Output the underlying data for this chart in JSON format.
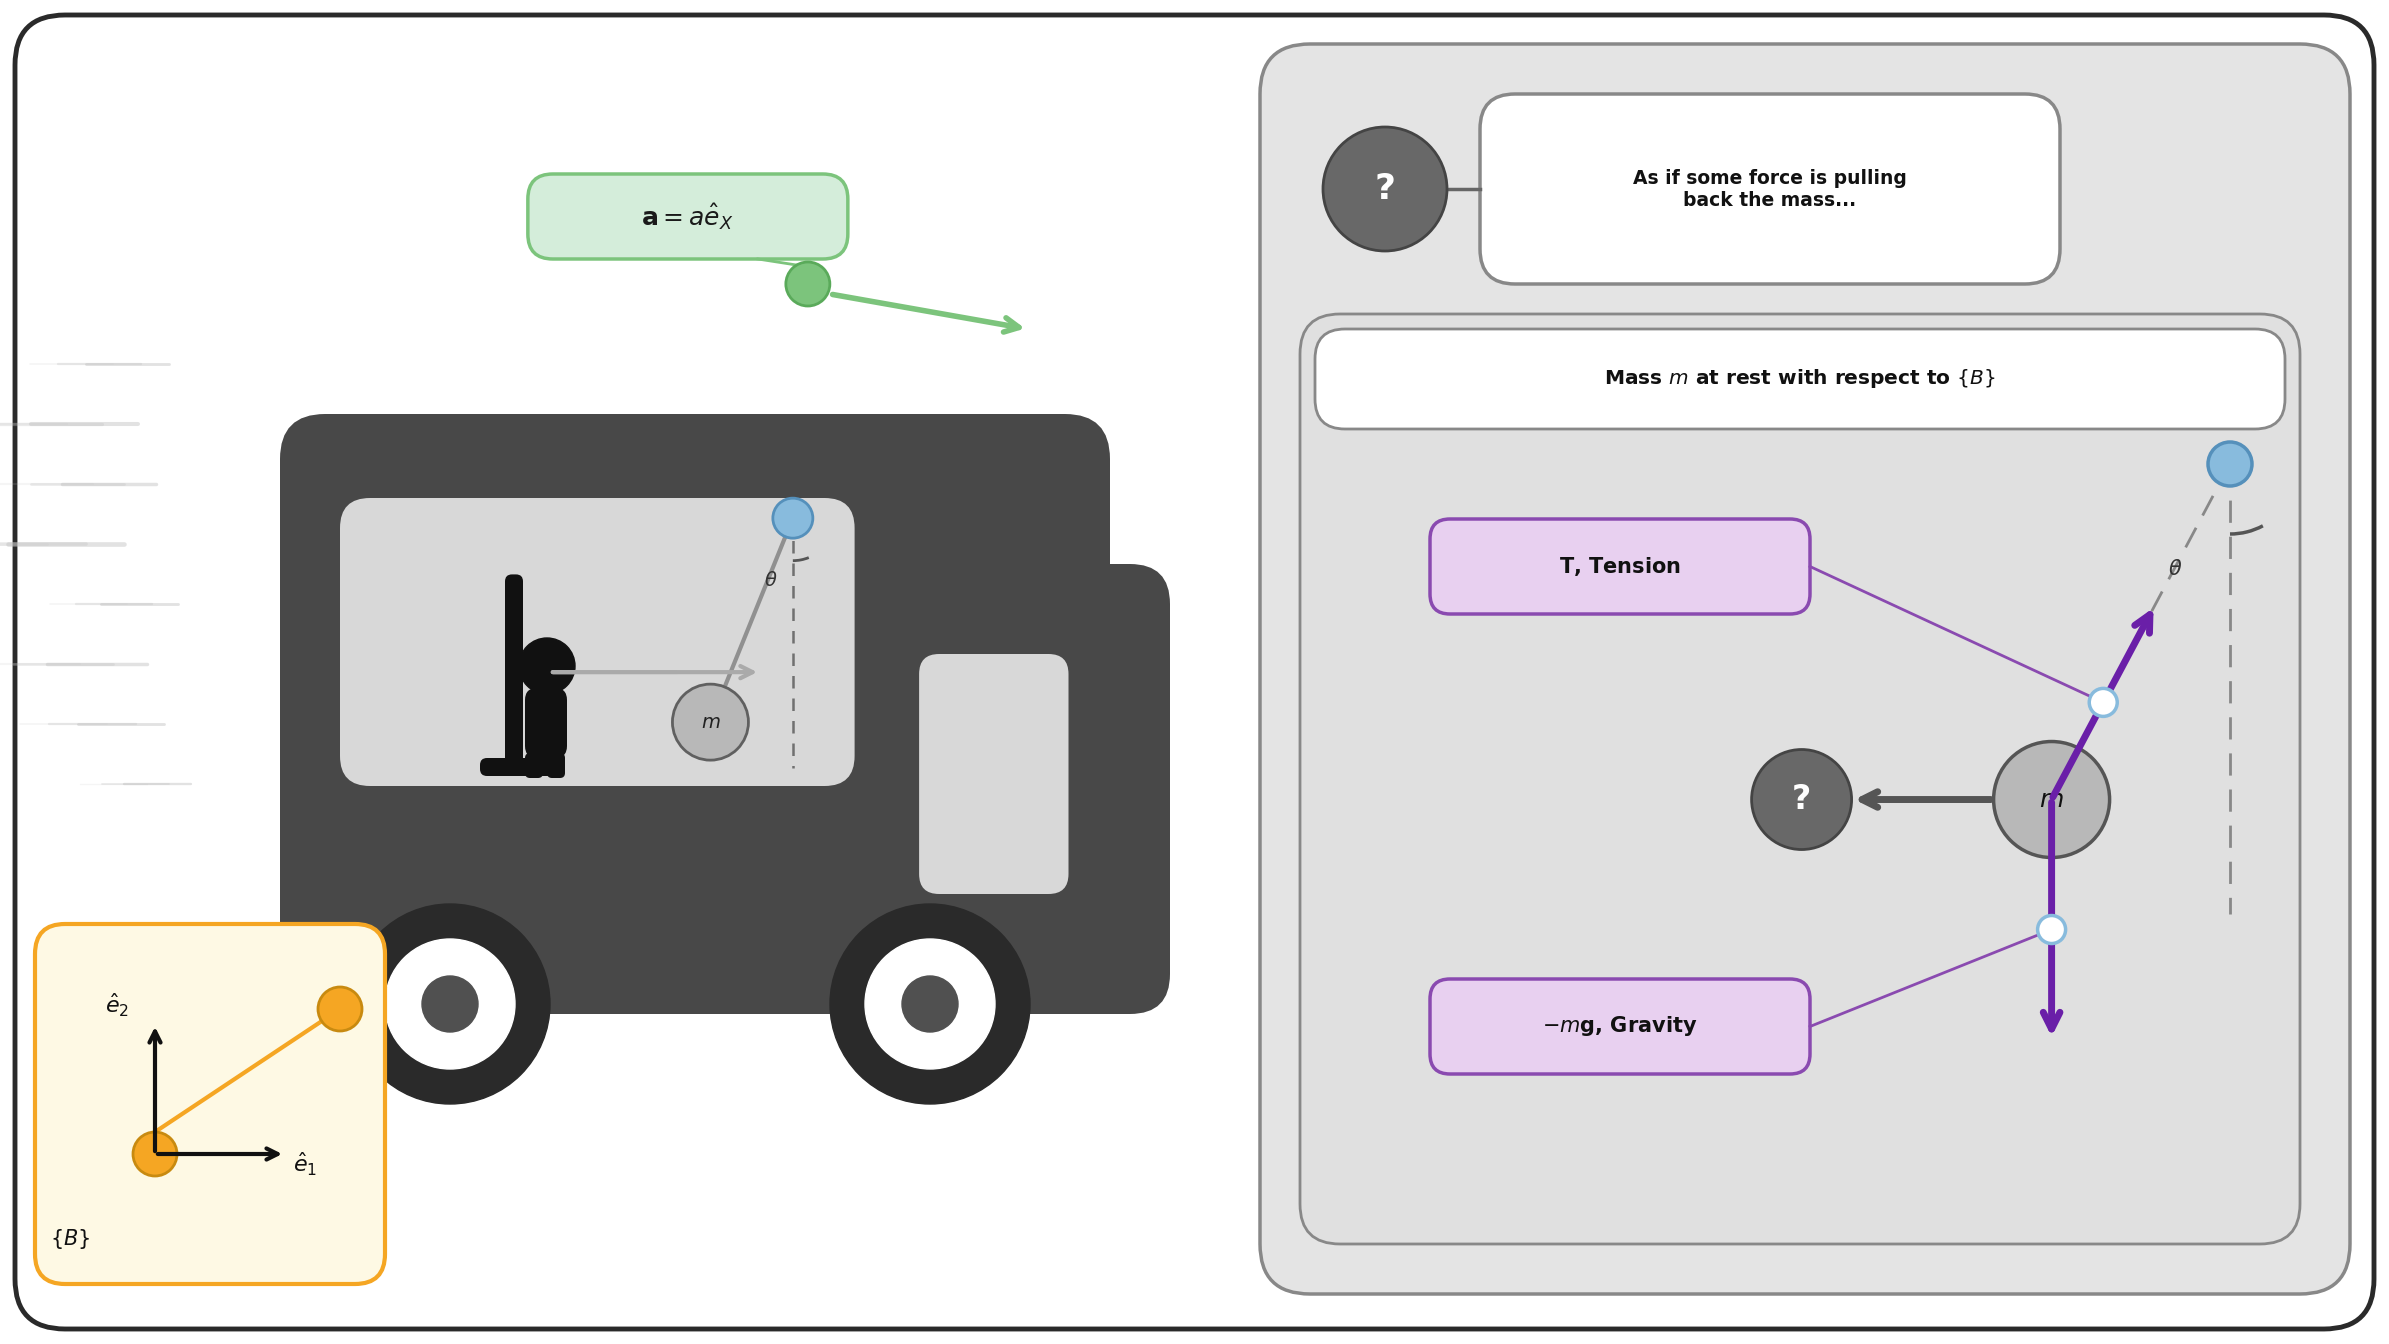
{
  "bg_color": "#ffffff",
  "outer_box_color": "#2a2a2a",
  "bus_color": "#484848",
  "window_bg": "#c0c0c0",
  "green_color": "#7cc47c",
  "green_dark": "#4caf50",
  "green_box_bg": "#d4edda",
  "green_box_border": "#7cc47c",
  "blue_dot_color": "#88bbdd",
  "gray_mass_color": "#b8b8b8",
  "dashed_color": "#888888",
  "orange_color": "#f5a623",
  "yellow_box_bg": "#fef9e4",
  "yellow_box_border": "#f5a623",
  "purple_color": "#6a1fa8",
  "purple_arrow_color": "#6a1fa8",
  "gray_question_color": "#606060",
  "gray_box_bg": "#e4e4e4",
  "gray_box_border": "#888888",
  "purple_box_bg": "#e8d0f0",
  "purple_box_border": "#8a4ab0",
  "motion_line_color": "#c0c0c0",
  "force_question_label": "As if some force is pulling\nback the mass...",
  "mass_rest_label": "Mass $m$ at rest with respect to $\\{B\\}$"
}
